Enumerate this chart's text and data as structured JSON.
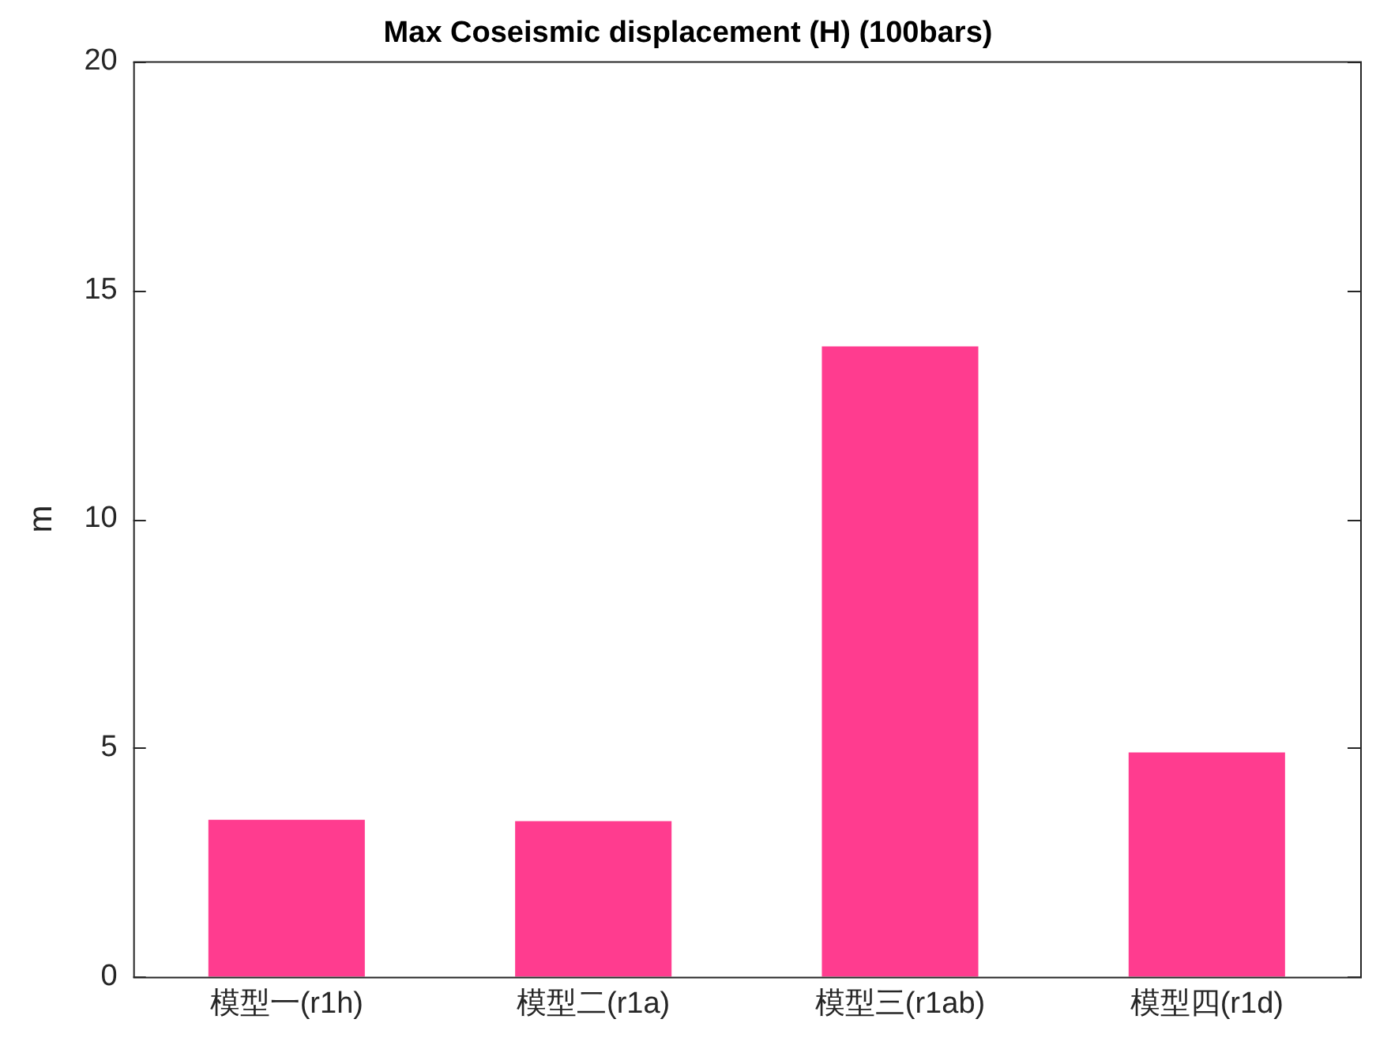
{
  "chart_data": {
    "type": "bar",
    "title": "Max Coseismic displacement (H) (100bars)",
    "ylabel": "m",
    "categories": [
      "模型一(r1h)",
      "模型二(r1a)",
      "模型三(r1ab)",
      "模型四(r1d)"
    ],
    "values": [
      3.43,
      3.4,
      13.77,
      4.9
    ],
    "color": "#ff3c8f",
    "ylim": [
      0,
      20
    ],
    "yticks": [
      0,
      5,
      10,
      15,
      20
    ],
    "grid": false,
    "legend": false
  }
}
